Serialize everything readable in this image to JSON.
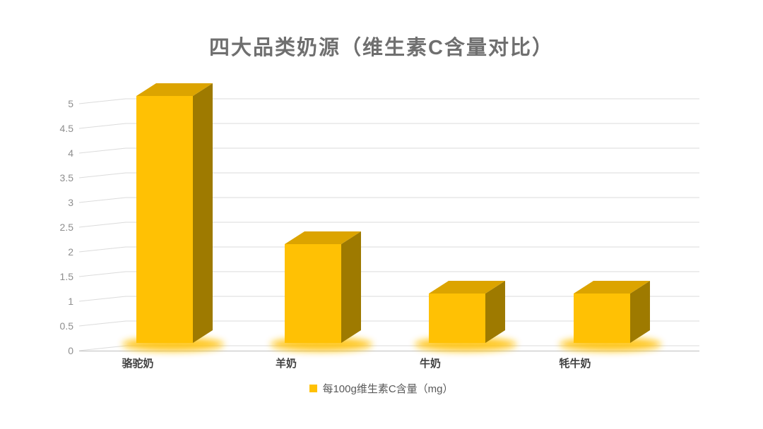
{
  "chart_data": {
    "type": "bar",
    "variant": "3d-column",
    "title": "四大品类奶源（维生素C含量对比）",
    "categories": [
      "骆驼奶",
      "羊奶",
      "牛奶",
      "牦牛奶"
    ],
    "series": [
      {
        "name": "每100g维生素C含量（mg）",
        "values": [
          5,
          2,
          1,
          1
        ]
      }
    ],
    "xlabel": "",
    "ylabel": "",
    "ylim": [
      0,
      5
    ],
    "ytick_step": 0.5,
    "yticks": [
      "0",
      "0.5",
      "1",
      "1.5",
      "2",
      "2.5",
      "3",
      "3.5",
      "4",
      "4.5",
      "5"
    ],
    "grid": true,
    "legend_position": "bottom",
    "colors": {
      "bar_front": "#FFC104",
      "bar_top": "#DCA400",
      "bar_side": "#9E7A00",
      "glow": "#FFC30F",
      "gridline": "#DBDBDB",
      "axis_line": "#C9C9C9",
      "tick_label": "#8E8E8E",
      "category_label": "#404040",
      "title_color": "#6F6F6F",
      "legend_text": "#595959",
      "legend_marker": "#FFC104",
      "background": "#FFFFFF"
    }
  }
}
